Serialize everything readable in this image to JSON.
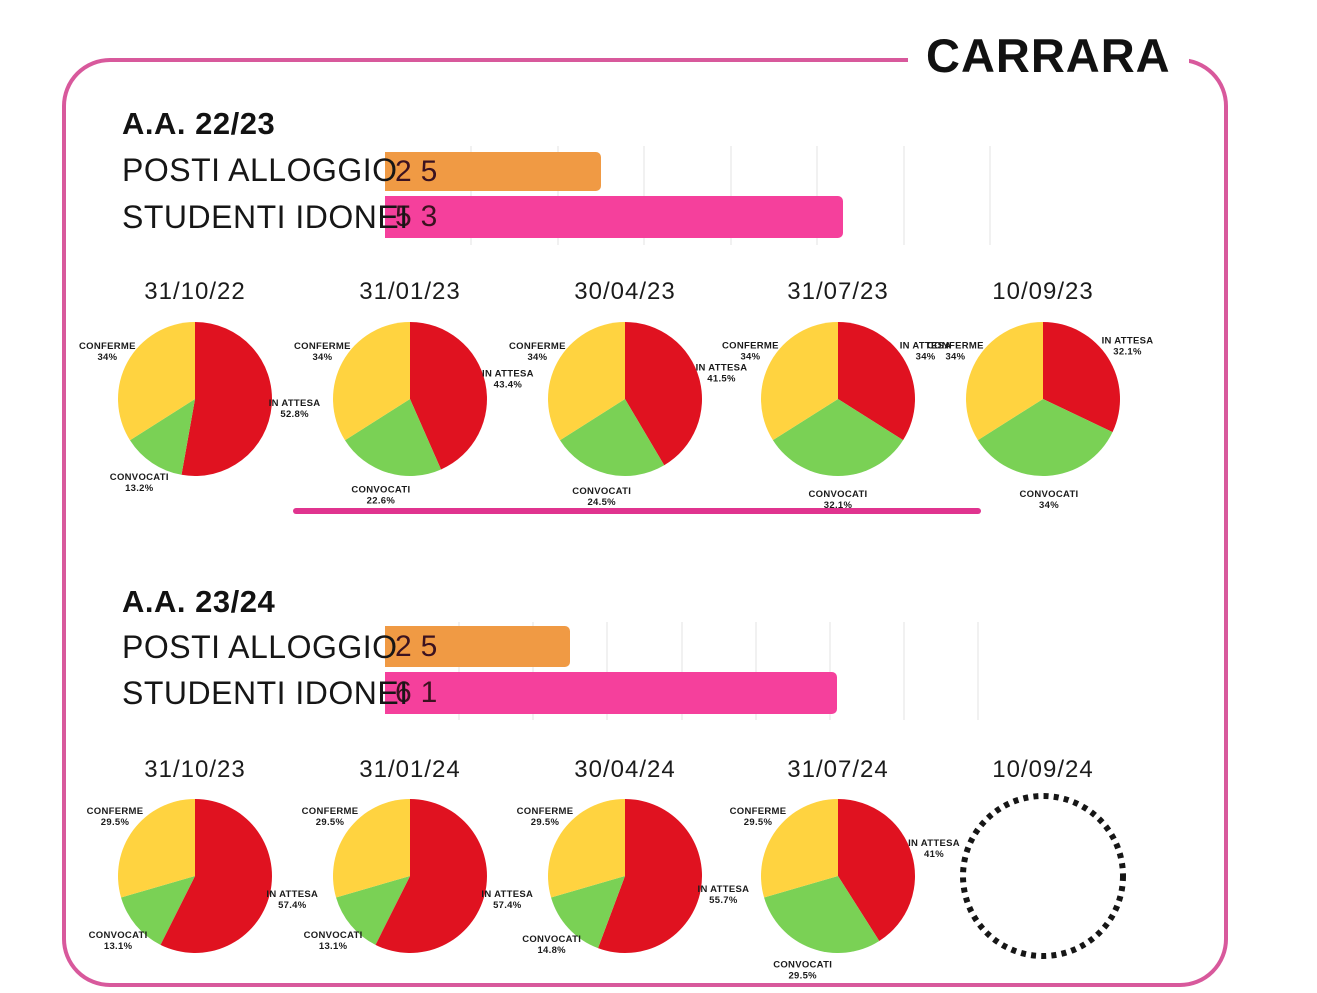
{
  "title": "CARRARA",
  "colors": {
    "in_attesa": "#E01220",
    "convocati": "#7AD155",
    "conferme": "#FFD340",
    "posti_alloggio_bar": "#F09A44",
    "studenti_idonei_bar": "#F5409C",
    "frame_border": "#D8599C",
    "divider": "#E0348F",
    "bar_value_text": "#3B1220"
  },
  "chart_data": {
    "charts": [
      {
        "type": "bar",
        "section": "A.A. 22/23",
        "categories": [
          "POSTI ALLOGGIO",
          "STUDENTI IDONEI"
        ],
        "values": [
          25,
          53
        ],
        "bar_colors": [
          "#F09A44",
          "#F5409C"
        ],
        "xlim": [
          0,
          70
        ],
        "grid_step": 10,
        "grid": true
      },
      {
        "type": "pie",
        "section": "A.A. 22/23",
        "slice_order": "clockwise-from-top",
        "pies": [
          {
            "date": "31/10/22",
            "slices": [
              {
                "label": "IN ATTESA",
                "value": 52.8,
                "pct": "52.8%",
                "color": "#E01220"
              },
              {
                "label": "CONVOCATI",
                "value": 13.2,
                "pct": "13.2%",
                "color": "#7AD155"
              },
              {
                "label": "CONFERME",
                "value": 34,
                "pct": "34%",
                "color": "#FFD340"
              }
            ]
          },
          {
            "date": "31/01/23",
            "slices": [
              {
                "label": "IN ATTESA",
                "value": 43.4,
                "pct": "43.4%",
                "color": "#E01220"
              },
              {
                "label": "CONVOCATI",
                "value": 22.6,
                "pct": "22.6%",
                "color": "#7AD155"
              },
              {
                "label": "CONFERME",
                "value": 34,
                "pct": "34%",
                "color": "#FFD340"
              }
            ]
          },
          {
            "date": "30/04/23",
            "slices": [
              {
                "label": "IN ATTESA",
                "value": 41.5,
                "pct": "41.5%",
                "color": "#E01220"
              },
              {
                "label": "CONVOCATI",
                "value": 24.5,
                "pct": "24.5%",
                "color": "#7AD155"
              },
              {
                "label": "CONFERME",
                "value": 34,
                "pct": "34%",
                "color": "#FFD340"
              }
            ]
          },
          {
            "date": "31/07/23",
            "slices": [
              {
                "label": "IN ATTESA",
                "value": 34,
                "pct": "34%",
                "color": "#E01220"
              },
              {
                "label": "CONVOCATI",
                "value": 32.1,
                "pct": "32.1%",
                "color": "#7AD155"
              },
              {
                "label": "CONFERME",
                "value": 34,
                "pct": "34%",
                "color": "#FFD340"
              }
            ]
          },
          {
            "date": "10/09/23",
            "slices": [
              {
                "label": "IN ATTESA",
                "value": 32.1,
                "pct": "32.1%",
                "color": "#E01220"
              },
              {
                "label": "CONVOCATI",
                "value": 34,
                "pct": "34%",
                "color": "#7AD155"
              },
              {
                "label": "CONFERME",
                "value": 34,
                "pct": "34%",
                "color": "#FFD340"
              }
            ]
          }
        ]
      },
      {
        "type": "bar",
        "section": "A.A. 23/24",
        "categories": [
          "POSTI ALLOGGIO",
          "STUDENTI IDONEI"
        ],
        "values": [
          25,
          61
        ],
        "bar_colors": [
          "#F09A44",
          "#F5409C"
        ],
        "xlim": [
          0,
          81.6
        ],
        "grid_step": 10,
        "grid": true
      },
      {
        "type": "pie",
        "section": "A.A. 23/24",
        "slice_order": "clockwise-from-top",
        "pies": [
          {
            "date": "31/10/23",
            "slices": [
              {
                "label": "IN ATTESA",
                "value": 57.4,
                "pct": "57.4%",
                "color": "#E01220"
              },
              {
                "label": "CONVOCATI",
                "value": 13.1,
                "pct": "13.1%",
                "color": "#7AD155"
              },
              {
                "label": "CONFERME",
                "value": 29.5,
                "pct": "29.5%",
                "color": "#FFD340"
              }
            ]
          },
          {
            "date": "31/01/24",
            "slices": [
              {
                "label": "IN ATTESA",
                "value": 57.4,
                "pct": "57.4%",
                "color": "#E01220"
              },
              {
                "label": "CONVOCATI",
                "value": 13.1,
                "pct": "13.1%",
                "color": "#7AD155"
              },
              {
                "label": "CONFERME",
                "value": 29.5,
                "pct": "29.5%",
                "color": "#FFD340"
              }
            ]
          },
          {
            "date": "30/04/24",
            "slices": [
              {
                "label": "IN ATTESA",
                "value": 55.7,
                "pct": "55.7%",
                "color": "#E01220"
              },
              {
                "label": "CONVOCATI",
                "value": 14.8,
                "pct": "14.8%",
                "color": "#7AD155"
              },
              {
                "label": "CONFERME",
                "value": 29.5,
                "pct": "29.5%",
                "color": "#FFD340"
              }
            ]
          },
          {
            "date": "31/07/24",
            "slices": [
              {
                "label": "IN ATTESA",
                "value": 41,
                "pct": "41%",
                "color": "#E01220"
              },
              {
                "label": "CONVOCATI",
                "value": 29.5,
                "pct": "29.5%",
                "color": "#7AD155"
              },
              {
                "label": "CONFERME",
                "value": 29.5,
                "pct": "29.5%",
                "color": "#FFD340"
              }
            ]
          },
          {
            "date": "10/09/24",
            "no_data": true,
            "slices": []
          }
        ]
      }
    ]
  }
}
